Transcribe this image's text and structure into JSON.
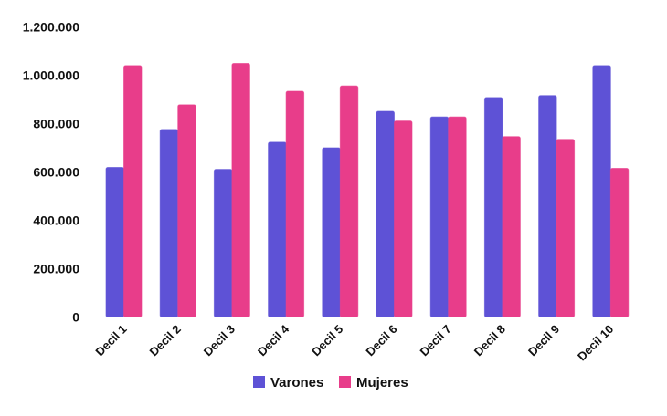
{
  "chart_data": {
    "type": "bar",
    "title": "",
    "xlabel": "",
    "ylabel": "",
    "ylim": [
      0,
      1200000
    ],
    "yticks": [
      0,
      200000,
      400000,
      600000,
      800000,
      1000000,
      1200000
    ],
    "ytick_labels": [
      "0",
      "200.000",
      "400.000",
      "600.000",
      "800.000",
      "1.000.000",
      "1.200.000"
    ],
    "grid": false,
    "legend_position": "bottom-center",
    "categories": [
      "Decil 1",
      "Decil 2",
      "Decil 3",
      "Decil 4",
      "Decil 5",
      "Decil 6",
      "Decil 7",
      "Decil 8",
      "Decil 9",
      "Decil 10"
    ],
    "series": [
      {
        "name": "Varones",
        "color": "#5e52d6",
        "values": [
          619000,
          776000,
          611000,
          723000,
          700000,
          851000,
          828000,
          908000,
          916000,
          1040000
        ]
      },
      {
        "name": "Mujeres",
        "color": "#e83d8a",
        "values": [
          1040000,
          878000,
          1049000,
          934000,
          956000,
          811000,
          828000,
          746000,
          735000,
          615000
        ]
      }
    ]
  }
}
